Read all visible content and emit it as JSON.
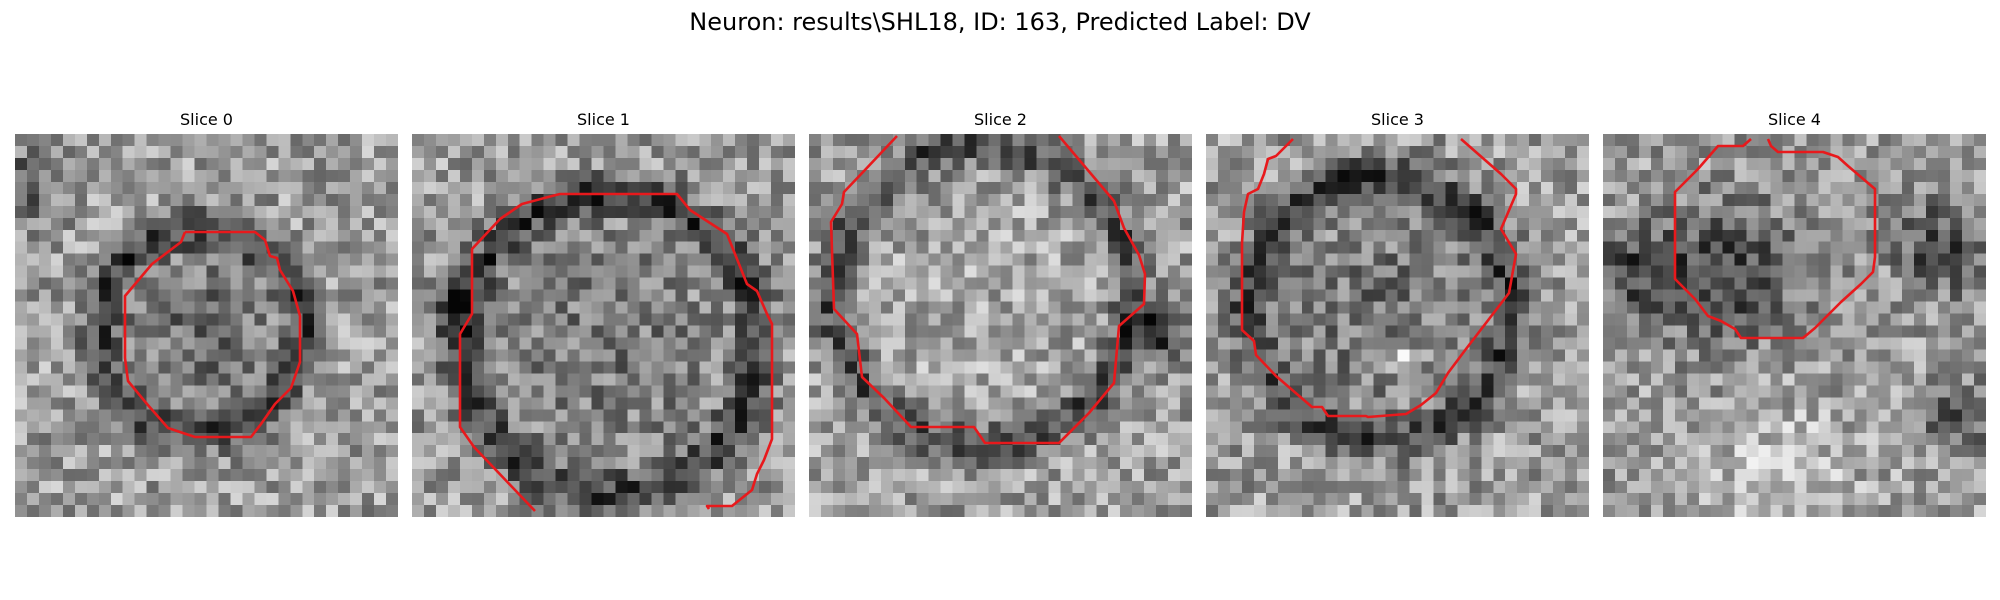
{
  "figure": {
    "title": "Neuron: results\\SHL18, ID: 163, Predicted Label: DV",
    "contour_color": "#e8191c"
  },
  "slices": [
    {
      "title": "Slice 0"
    },
    {
      "title": "Slice 1"
    },
    {
      "title": "Slice 2"
    },
    {
      "title": "Slice 3"
    },
    {
      "title": "Slice 4"
    }
  ]
}
